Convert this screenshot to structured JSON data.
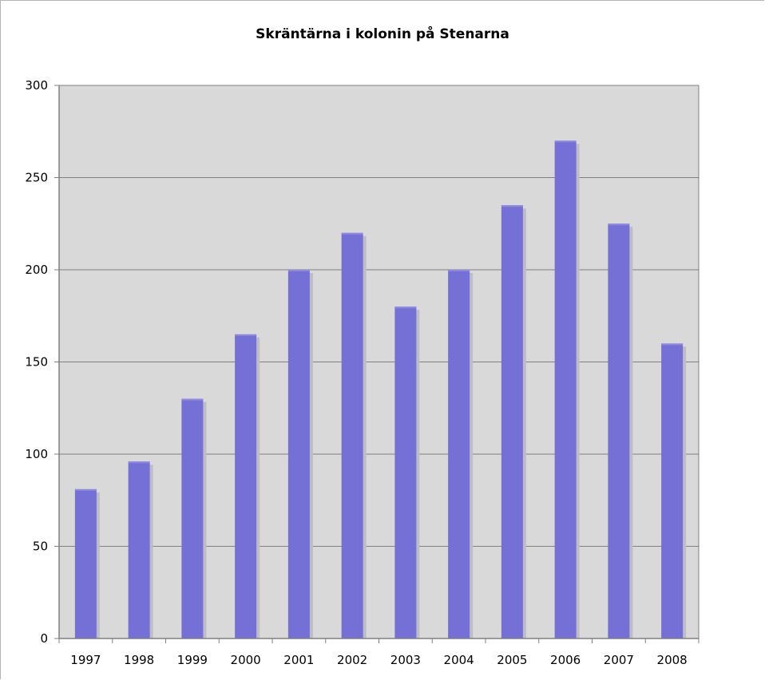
{
  "chart_data": {
    "type": "bar",
    "title": "Skräntärna i kolonin på Stenarna",
    "xlabel": "",
    "ylabel": "",
    "categories": [
      "1997",
      "1998",
      "1999",
      "2000",
      "2001",
      "2002",
      "2003",
      "2004",
      "2005",
      "2006",
      "2007",
      "2008"
    ],
    "values": [
      81,
      96,
      130,
      165,
      200,
      220,
      180,
      200,
      235,
      270,
      225,
      160
    ],
    "ylim": [
      0,
      300
    ],
    "yticks": [
      0,
      50,
      100,
      150,
      200,
      250,
      300
    ],
    "grid": true,
    "legend": "none",
    "colors": {
      "bar": "#7470d6",
      "bar_shadow": "#bdbdc6",
      "plot_bg": "#d9d9d9",
      "grid": "#808080",
      "axis": "#808080"
    }
  }
}
